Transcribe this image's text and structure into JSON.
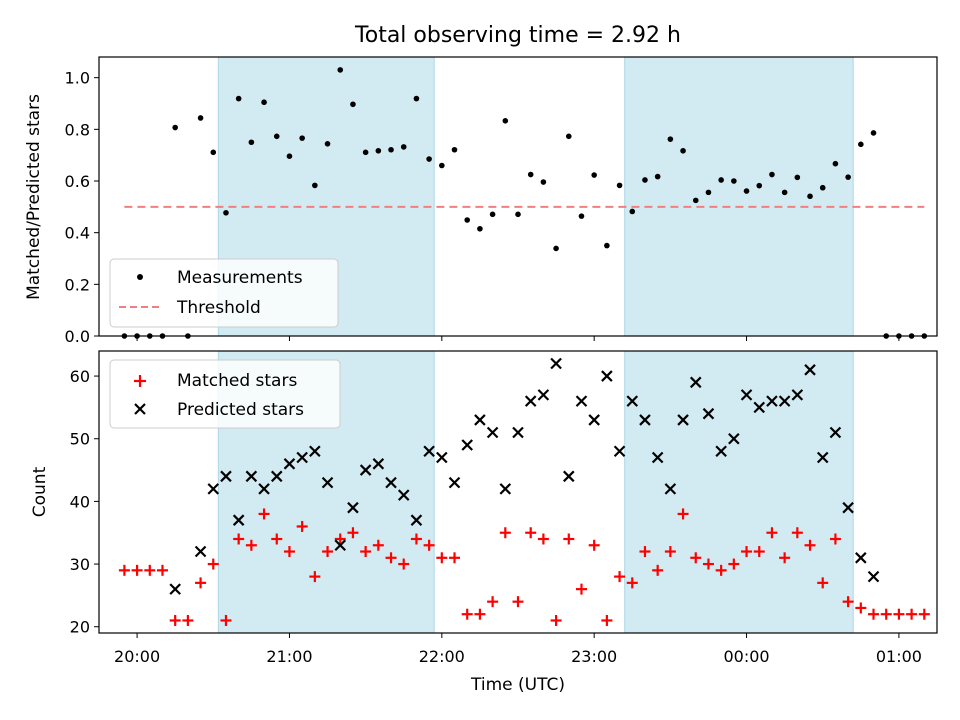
{
  "colors": {
    "night_band": "#add8e6",
    "measurement_point": "#000000",
    "threshold_line": "#f08080",
    "matched_marker": "#ff0000",
    "predicted_marker": "#000000"
  },
  "chart_data": [
    {
      "type": "scatter",
      "title": "Total observing time = 2.92 h",
      "xlabel": "",
      "ylabel": "Matched/Predicted stars",
      "xlim": [
        "19:45",
        "01:15"
      ],
      "ylim": [
        0,
        1.08
      ],
      "yticks": [
        0.0,
        0.2,
        0.4,
        0.6,
        0.8,
        1.0
      ],
      "ytick_labels": [
        "0.0",
        "0.2",
        "0.4",
        "0.6",
        "0.8",
        "1.0"
      ],
      "xticks": [
        "20:00",
        "21:00",
        "22:00",
        "23:00",
        "00:00",
        "01:00"
      ],
      "grid": false,
      "legend": {
        "position": "lower-left",
        "entries": [
          {
            "label": "Measurements",
            "marker": "dot"
          },
          {
            "label": "Threshold",
            "marker": "dashed-line"
          }
        ]
      },
      "shaded_spans": [
        [
          "20:32",
          "21:57"
        ],
        [
          "23:12",
          "00:42"
        ]
      ],
      "series": [
        {
          "name": "Measurements",
          "marker": "dot",
          "points": [
            [
              "19:55",
              0.0
            ],
            [
              "20:00",
              0.0
            ],
            [
              "20:05",
              0.0
            ],
            [
              "20:10",
              0.0
            ],
            [
              "20:15",
              0.807
            ],
            [
              "20:20",
              0.0
            ],
            [
              "20:25",
              0.844
            ],
            [
              "20:30",
              0.711
            ],
            [
              "20:35",
              0.477
            ],
            [
              "20:40",
              0.919
            ],
            [
              "20:45",
              0.75
            ],
            [
              "20:50",
              0.905
            ],
            [
              "20:55",
              0.773
            ],
            [
              "21:00",
              0.696
            ],
            [
              "21:05",
              0.766
            ],
            [
              "21:10",
              0.583
            ],
            [
              "21:15",
              0.744
            ],
            [
              "21:20",
              1.03
            ],
            [
              "21:25",
              0.897
            ],
            [
              "21:30",
              0.711
            ],
            [
              "21:35",
              0.717
            ],
            [
              "21:40",
              0.721
            ],
            [
              "21:45",
              0.732
            ],
            [
              "21:50",
              0.919
            ],
            [
              "21:55",
              0.685
            ],
            [
              "22:00",
              0.66
            ],
            [
              "22:05",
              0.721
            ],
            [
              "22:10",
              0.449
            ],
            [
              "22:15",
              0.415
            ],
            [
              "22:20",
              0.471
            ],
            [
              "22:25",
              0.833
            ],
            [
              "22:30",
              0.471
            ],
            [
              "22:35",
              0.625
            ],
            [
              "22:40",
              0.596
            ],
            [
              "22:45",
              0.339
            ],
            [
              "22:50",
              0.773
            ],
            [
              "22:55",
              0.464
            ],
            [
              "23:00",
              0.623
            ],
            [
              "23:05",
              0.35
            ],
            [
              "23:10",
              0.583
            ],
            [
              "23:15",
              0.482
            ],
            [
              "23:20",
              0.604
            ],
            [
              "23:25",
              0.617
            ],
            [
              "23:30",
              0.762
            ],
            [
              "23:35",
              0.717
            ],
            [
              "23:40",
              0.525
            ],
            [
              "23:45",
              0.556
            ],
            [
              "23:50",
              0.604
            ],
            [
              "23:55",
              0.6
            ],
            [
              "00:00",
              0.561
            ],
            [
              "00:05",
              0.582
            ],
            [
              "00:10",
              0.625
            ],
            [
              "00:15",
              0.556
            ],
            [
              "00:20",
              0.614
            ],
            [
              "00:25",
              0.541
            ],
            [
              "00:30",
              0.574
            ],
            [
              "00:35",
              0.667
            ],
            [
              "00:40",
              0.615
            ],
            [
              "00:45",
              0.742
            ],
            [
              "00:50",
              0.786
            ],
            [
              "00:55",
              0.0
            ],
            [
              "01:00",
              0.0
            ],
            [
              "01:05",
              0.0
            ],
            [
              "01:10",
              0.0
            ]
          ]
        },
        {
          "name": "Threshold",
          "marker": "dashed-line",
          "points": [
            [
              "19:55",
              0.5
            ],
            [
              "01:10",
              0.5
            ]
          ]
        }
      ]
    },
    {
      "type": "scatter",
      "title": "",
      "xlabel": "Time (UTC)",
      "ylabel": "Count",
      "xlim": [
        "19:45",
        "01:15"
      ],
      "ylim": [
        19,
        64
      ],
      "yticks": [
        20,
        30,
        40,
        50,
        60
      ],
      "ytick_labels": [
        "20",
        "30",
        "40",
        "50",
        "60"
      ],
      "xticks": [
        "20:00",
        "21:00",
        "22:00",
        "23:00",
        "00:00",
        "01:00"
      ],
      "grid": false,
      "legend": {
        "position": "upper-left",
        "entries": [
          {
            "label": "Matched stars",
            "marker": "plus"
          },
          {
            "label": "Predicted stars",
            "marker": "x"
          }
        ]
      },
      "shaded_spans": [
        [
          "20:32",
          "21:57"
        ],
        [
          "23:12",
          "00:42"
        ]
      ],
      "series": [
        {
          "name": "Matched stars",
          "marker": "plus",
          "points": [
            [
              "19:55",
              29
            ],
            [
              "20:00",
              29
            ],
            [
              "20:05",
              29
            ],
            [
              "20:10",
              29
            ],
            [
              "20:15",
              21
            ],
            [
              "20:20",
              21
            ],
            [
              "20:25",
              27
            ],
            [
              "20:30",
              30
            ],
            [
              "20:35",
              21
            ],
            [
              "20:40",
              34
            ],
            [
              "20:45",
              33
            ],
            [
              "20:50",
              38
            ],
            [
              "20:55",
              34
            ],
            [
              "21:00",
              32
            ],
            [
              "21:05",
              36
            ],
            [
              "21:10",
              28
            ],
            [
              "21:15",
              32
            ],
            [
              "21:20",
              34
            ],
            [
              "21:25",
              35
            ],
            [
              "21:30",
              32
            ],
            [
              "21:35",
              33
            ],
            [
              "21:40",
              31
            ],
            [
              "21:45",
              30
            ],
            [
              "21:50",
              34
            ],
            [
              "21:55",
              33
            ],
            [
              "22:00",
              31
            ],
            [
              "22:05",
              31
            ],
            [
              "22:10",
              22
            ],
            [
              "22:15",
              22
            ],
            [
              "22:20",
              24
            ],
            [
              "22:25",
              35
            ],
            [
              "22:30",
              24
            ],
            [
              "22:35",
              35
            ],
            [
              "22:40",
              34
            ],
            [
              "22:45",
              21
            ],
            [
              "22:50",
              34
            ],
            [
              "22:55",
              26
            ],
            [
              "23:00",
              33
            ],
            [
              "23:05",
              21
            ],
            [
              "23:10",
              28
            ],
            [
              "23:15",
              27
            ],
            [
              "23:20",
              32
            ],
            [
              "23:25",
              29
            ],
            [
              "23:30",
              32
            ],
            [
              "23:35",
              38
            ],
            [
              "23:40",
              31
            ],
            [
              "23:45",
              30
            ],
            [
              "23:50",
              29
            ],
            [
              "23:55",
              30
            ],
            [
              "00:00",
              32
            ],
            [
              "00:05",
              32
            ],
            [
              "00:10",
              35
            ],
            [
              "00:15",
              31
            ],
            [
              "00:20",
              35
            ],
            [
              "00:25",
              33
            ],
            [
              "00:30",
              27
            ],
            [
              "00:35",
              34
            ],
            [
              "00:40",
              24
            ],
            [
              "00:45",
              23
            ],
            [
              "00:50",
              22
            ],
            [
              "00:55",
              22
            ],
            [
              "01:00",
              22
            ],
            [
              "01:05",
              22
            ],
            [
              "01:10",
              22
            ]
          ]
        },
        {
          "name": "Predicted stars",
          "marker": "x",
          "points": [
            [
              "20:15",
              26
            ],
            [
              "20:25",
              32
            ],
            [
              "20:30",
              42
            ],
            [
              "20:35",
              44
            ],
            [
              "20:40",
              37
            ],
            [
              "20:45",
              44
            ],
            [
              "20:50",
              42
            ],
            [
              "20:55",
              44
            ],
            [
              "21:00",
              46
            ],
            [
              "21:05",
              47
            ],
            [
              "21:10",
              48
            ],
            [
              "21:15",
              43
            ],
            [
              "21:20",
              33
            ],
            [
              "21:25",
              39
            ],
            [
              "21:30",
              45
            ],
            [
              "21:35",
              46
            ],
            [
              "21:40",
              43
            ],
            [
              "21:45",
              41
            ],
            [
              "21:50",
              37
            ],
            [
              "21:55",
              48
            ],
            [
              "22:00",
              47
            ],
            [
              "22:05",
              43
            ],
            [
              "22:10",
              49
            ],
            [
              "22:15",
              53
            ],
            [
              "22:20",
              51
            ],
            [
              "22:25",
              42
            ],
            [
              "22:30",
              51
            ],
            [
              "22:35",
              56
            ],
            [
              "22:40",
              57
            ],
            [
              "22:45",
              62
            ],
            [
              "22:50",
              44
            ],
            [
              "22:55",
              56
            ],
            [
              "23:00",
              53
            ],
            [
              "23:05",
              60
            ],
            [
              "23:10",
              48
            ],
            [
              "23:15",
              56
            ],
            [
              "23:20",
              53
            ],
            [
              "23:25",
              47
            ],
            [
              "23:30",
              42
            ],
            [
              "23:35",
              53
            ],
            [
              "23:40",
              59
            ],
            [
              "23:45",
              54
            ],
            [
              "23:50",
              48
            ],
            [
              "23:55",
              50
            ],
            [
              "00:00",
              57
            ],
            [
              "00:05",
              55
            ],
            [
              "00:10",
              56
            ],
            [
              "00:15",
              56
            ],
            [
              "00:20",
              57
            ],
            [
              "00:25",
              61
            ],
            [
              "00:30",
              47
            ],
            [
              "00:35",
              51
            ],
            [
              "00:40",
              39
            ],
            [
              "00:45",
              31
            ],
            [
              "00:50",
              28
            ]
          ]
        }
      ]
    }
  ]
}
